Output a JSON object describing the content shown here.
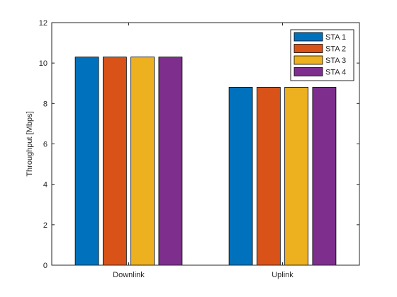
{
  "chart_data": {
    "type": "bar",
    "categories": [
      "Downlink",
      "Uplink"
    ],
    "series": [
      {
        "name": "STA 1",
        "color": "#0072BD",
        "values": [
          10.3,
          8.8
        ]
      },
      {
        "name": "STA 2",
        "color": "#D95319",
        "values": [
          10.3,
          8.8
        ]
      },
      {
        "name": "STA 3",
        "color": "#EDB120",
        "values": [
          10.3,
          8.8
        ]
      },
      {
        "name": "STA 4",
        "color": "#7E2F8E",
        "values": [
          10.3,
          8.8
        ]
      }
    ],
    "ylabel": "Throughput [Mbps]",
    "ylim": [
      0,
      12
    ],
    "yticks": [
      0,
      2,
      4,
      6,
      8,
      10,
      12
    ],
    "grid": false,
    "legend_position": "top-right"
  }
}
